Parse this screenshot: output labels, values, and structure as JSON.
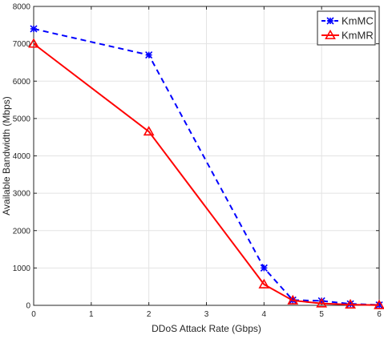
{
  "chart_data": {
    "type": "line",
    "title": "",
    "xlabel": "DDoS Attack Rate (Gbps)",
    "ylabel": "Available Bandwidth (Mbps)",
    "xlim": [
      0,
      6
    ],
    "ylim": [
      0,
      8000
    ],
    "xticks": [
      "0",
      "1",
      "2",
      "3",
      "4",
      "5",
      "6"
    ],
    "yticks": [
      "0",
      "1000",
      "2000",
      "3000",
      "4000",
      "5000",
      "6000",
      "7000",
      "8000"
    ],
    "grid": true,
    "legend_position": "top-right",
    "series": [
      {
        "name": "KmMC",
        "color": "#0000ff",
        "line_style": "dashed",
        "marker": "asterisk",
        "x": [
          0,
          2,
          4,
          4.5,
          5,
          5.5,
          6
        ],
        "y": [
          7400,
          6700,
          1000,
          140,
          120,
          40,
          10
        ]
      },
      {
        "name": "KmMR",
        "color": "#ff0000",
        "line_style": "solid",
        "marker": "triangle",
        "x": [
          0,
          2,
          4,
          4.5,
          5,
          5.5,
          6
        ],
        "y": [
          7000,
          4650,
          560,
          130,
          50,
          20,
          5
        ]
      }
    ]
  }
}
